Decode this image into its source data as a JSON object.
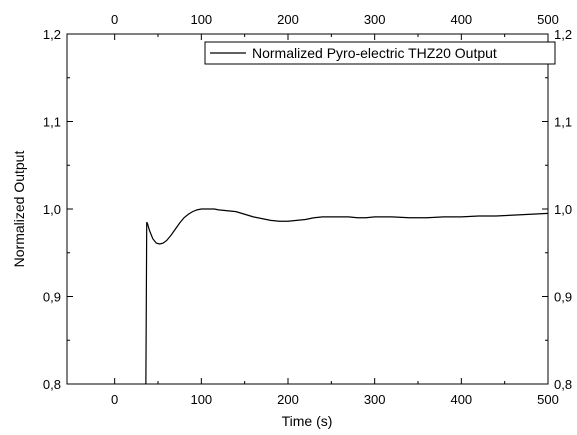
{
  "chart_data": {
    "type": "line",
    "xlabel": "Time (s)",
    "ylabel": "Normalized Output",
    "xlim": [
      -55,
      500
    ],
    "ylim": [
      0.8,
      1.2
    ],
    "x_ticks": [
      0,
      100,
      200,
      300,
      400,
      500
    ],
    "y_ticks": [
      "0,8",
      "0,9",
      "1,0",
      "1,1",
      "1,2"
    ],
    "y_tick_values": [
      0.8,
      0.9,
      1.0,
      1.1,
      1.2
    ],
    "grid": false,
    "legend_position": "top-right",
    "series": [
      {
        "name": "Normalized Pyro-electric THZ20 Output",
        "color": "#000000",
        "x": [
          36,
          37,
          38,
          40,
          44,
          48,
          52,
          56,
          60,
          65,
          70,
          75,
          80,
          85,
          90,
          95,
          100,
          105,
          110,
          115,
          120,
          130,
          140,
          150,
          160,
          170,
          180,
          190,
          200,
          210,
          220,
          230,
          240,
          250,
          260,
          270,
          280,
          290,
          300,
          320,
          340,
          360,
          380,
          400,
          420,
          440,
          460,
          480,
          500
        ],
        "values": [
          0.8,
          0.985,
          0.983,
          0.976,
          0.966,
          0.961,
          0.96,
          0.961,
          0.964,
          0.97,
          0.977,
          0.984,
          0.99,
          0.994,
          0.997,
          0.999,
          1.0,
          1.0,
          1.0,
          1.0,
          0.999,
          0.998,
          0.997,
          0.994,
          0.991,
          0.989,
          0.987,
          0.986,
          0.986,
          0.987,
          0.988,
          0.99,
          0.991,
          0.991,
          0.991,
          0.991,
          0.99,
          0.99,
          0.991,
          0.991,
          0.99,
          0.99,
          0.991,
          0.991,
          0.992,
          0.992,
          0.993,
          0.994,
          0.995
        ]
      }
    ]
  }
}
